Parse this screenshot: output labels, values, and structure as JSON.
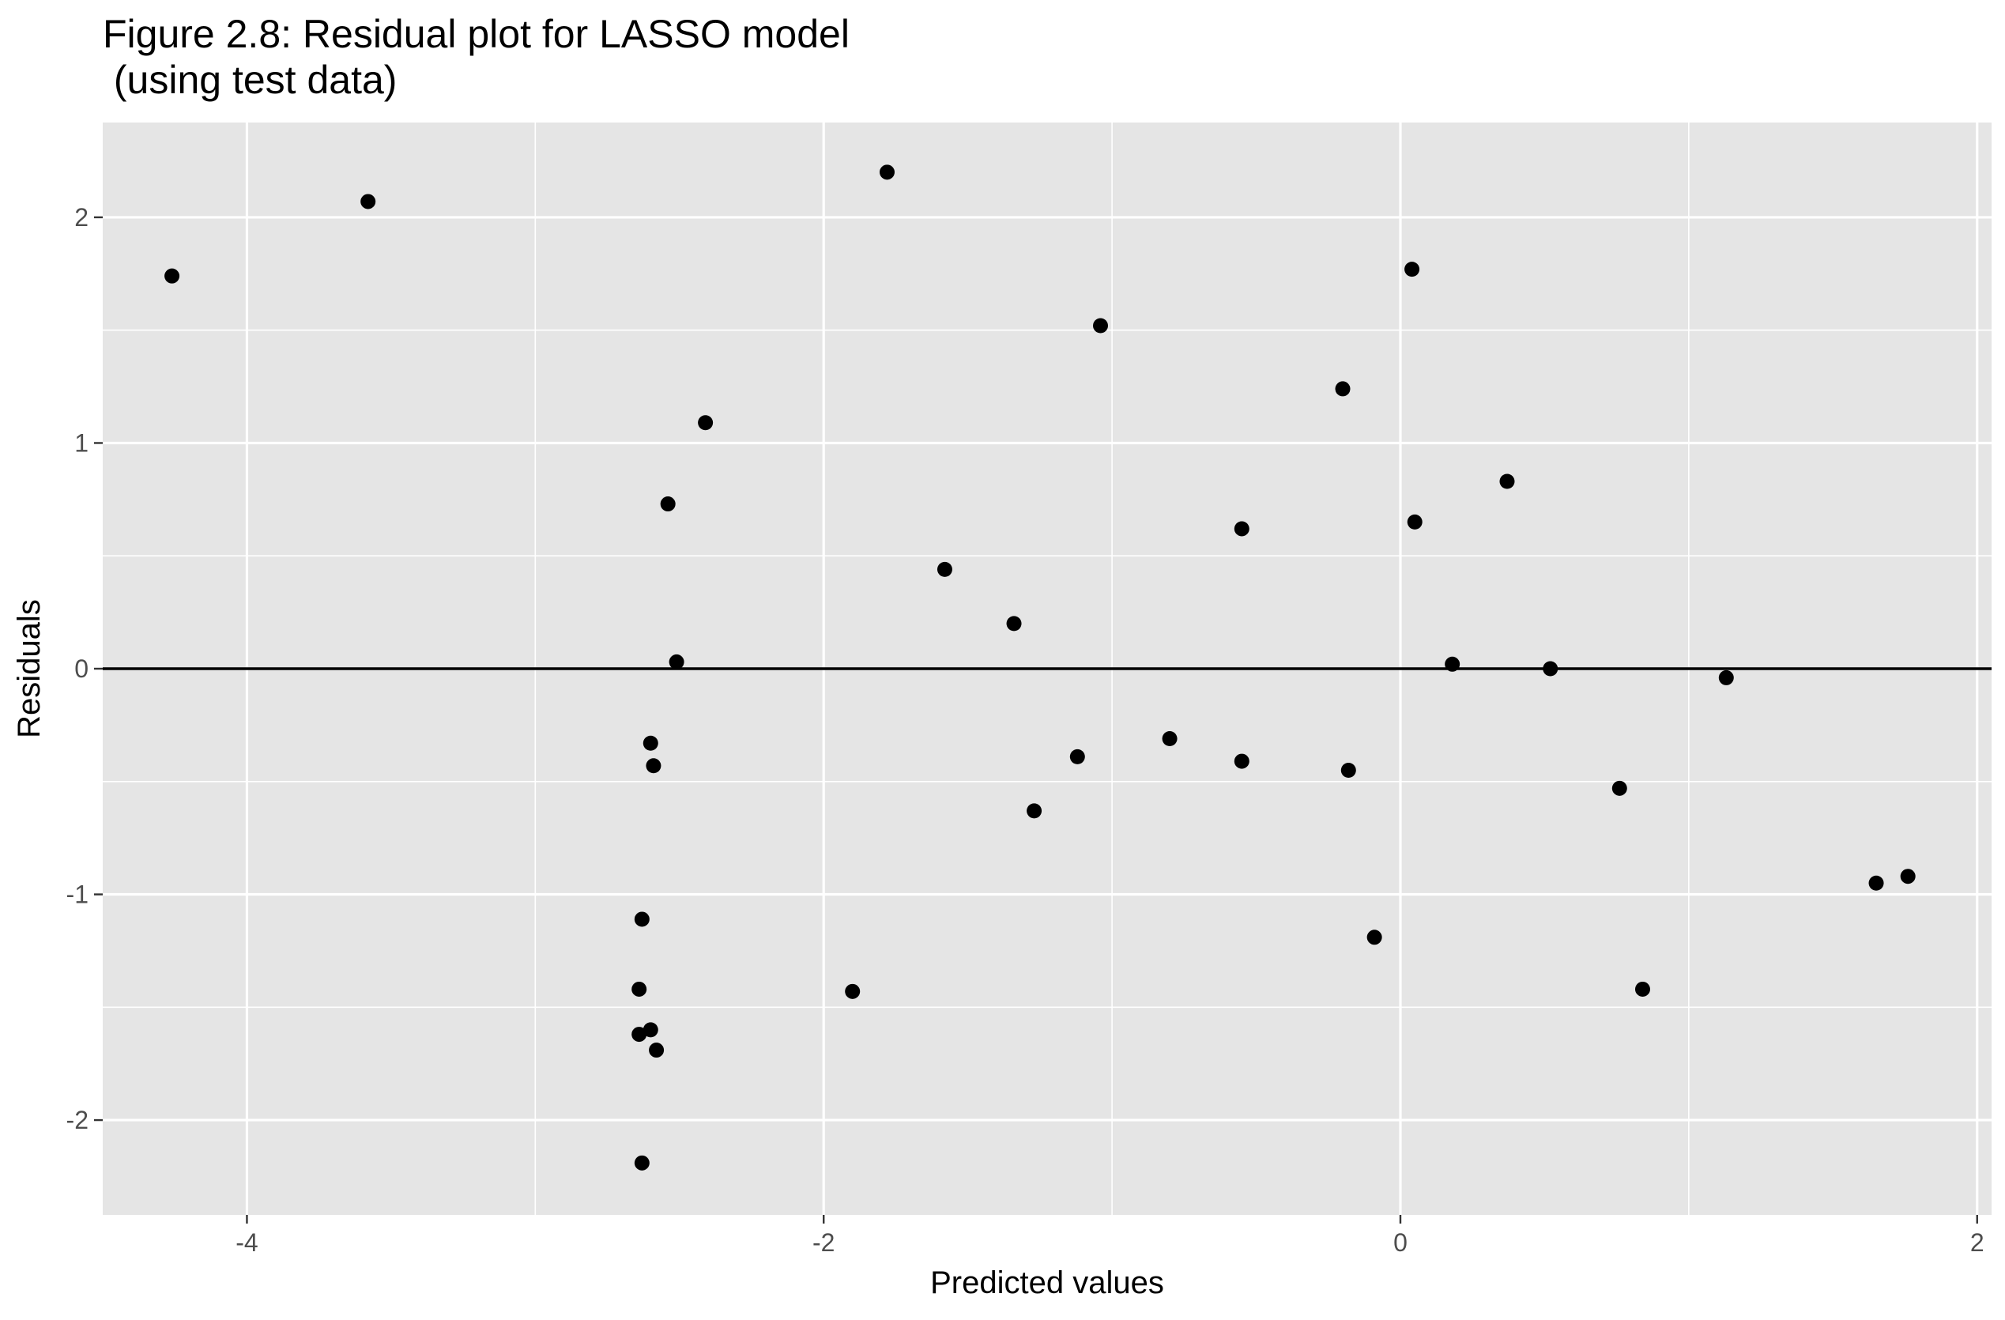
{
  "chart_data": {
    "type": "scatter",
    "title": "Figure 2.8: Residual plot for LASSO model",
    "subtitle": " (using test data)",
    "xlabel": "Predicted values",
    "ylabel": "Residuals",
    "xlim": [
      -4.5,
      2.05
    ],
    "ylim": [
      -2.42,
      2.42
    ],
    "x_major_ticks": [
      -4,
      -2,
      0,
      2
    ],
    "x_tick_labels": [
      "-4",
      "-2",
      "0",
      "2"
    ],
    "x_minor_ticks": [
      -3,
      -1,
      1
    ],
    "y_major_ticks": [
      -2,
      -1,
      0,
      1,
      2
    ],
    "y_tick_labels": [
      "-2",
      "-1",
      "0",
      "1",
      "2"
    ],
    "y_minor_ticks": [
      -1.5,
      -0.5,
      0.5,
      1.5
    ],
    "grid": true,
    "reference_line": {
      "y": 0
    },
    "colors": {
      "panel": "#e5e5e5",
      "grid": "#ffffff",
      "points": "#000000",
      "reference_line": "#000000",
      "tick_text": "#4d4d4d"
    },
    "points": [
      {
        "x": -4.26,
        "y": 1.74
      },
      {
        "x": -3.58,
        "y": 2.07
      },
      {
        "x": -1.78,
        "y": 2.2
      },
      {
        "x": -2.41,
        "y": 1.09
      },
      {
        "x": -2.54,
        "y": 0.73
      },
      {
        "x": -2.51,
        "y": 0.03
      },
      {
        "x": -2.6,
        "y": -0.33
      },
      {
        "x": -2.59,
        "y": -0.43
      },
      {
        "x": -2.63,
        "y": -1.11
      },
      {
        "x": -2.64,
        "y": -1.42
      },
      {
        "x": -2.6,
        "y": -1.6
      },
      {
        "x": -2.64,
        "y": -1.62
      },
      {
        "x": -2.58,
        "y": -1.69
      },
      {
        "x": -2.63,
        "y": -2.19
      },
      {
        "x": -1.9,
        "y": -1.43
      },
      {
        "x": -1.58,
        "y": 0.44
      },
      {
        "x": -1.34,
        "y": 0.2
      },
      {
        "x": -1.27,
        "y": -0.63
      },
      {
        "x": -1.12,
        "y": -0.39
      },
      {
        "x": -1.04,
        "y": 1.52
      },
      {
        "x": -0.8,
        "y": -0.31
      },
      {
        "x": -0.55,
        "y": 0.62
      },
      {
        "x": -0.55,
        "y": -0.41
      },
      {
        "x": -0.2,
        "y": 1.24
      },
      {
        "x": -0.18,
        "y": -0.45
      },
      {
        "x": -0.09,
        "y": -1.19
      },
      {
        "x": 0.04,
        "y": 1.77
      },
      {
        "x": 0.05,
        "y": 0.65
      },
      {
        "x": 0.18,
        "y": 0.02
      },
      {
        "x": 0.37,
        "y": 0.83
      },
      {
        "x": 0.52,
        "y": 0.0
      },
      {
        "x": 0.76,
        "y": -0.53
      },
      {
        "x": 0.84,
        "y": -1.42
      },
      {
        "x": 1.13,
        "y": -0.04
      },
      {
        "x": 1.65,
        "y": -0.95
      },
      {
        "x": 1.76,
        "y": -0.92
      }
    ]
  }
}
